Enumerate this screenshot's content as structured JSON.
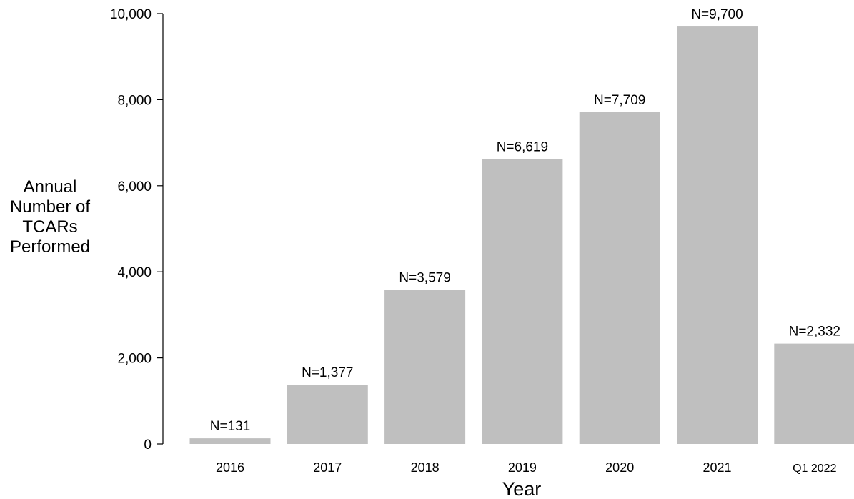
{
  "chart_data": {
    "type": "bar",
    "categories": [
      "2016",
      "2017",
      "2018",
      "2019",
      "2020",
      "2021",
      "Q1 2022"
    ],
    "values": [
      131,
      1377,
      3579,
      6619,
      7709,
      9700,
      2332
    ],
    "data_labels": [
      "N=131",
      "N=1,377",
      "N=3,579",
      "N=6,619",
      "N=7,709",
      "N=9,700",
      "N=2,332"
    ],
    "ylabel_lines": [
      "Annual",
      "Number of",
      "TCARs",
      "Performed"
    ],
    "xlabel": "Year",
    "ylim": [
      0,
      10000
    ],
    "yticks": [
      0,
      2000,
      4000,
      6000,
      8000,
      10000
    ],
    "ytick_labels": [
      "0",
      "2,000",
      "4,000",
      "6,000",
      "8,000",
      "10,000"
    ],
    "bar_color": "#bfbfbf",
    "axis_color": "#000000",
    "grid": false,
    "legend": "none"
  }
}
